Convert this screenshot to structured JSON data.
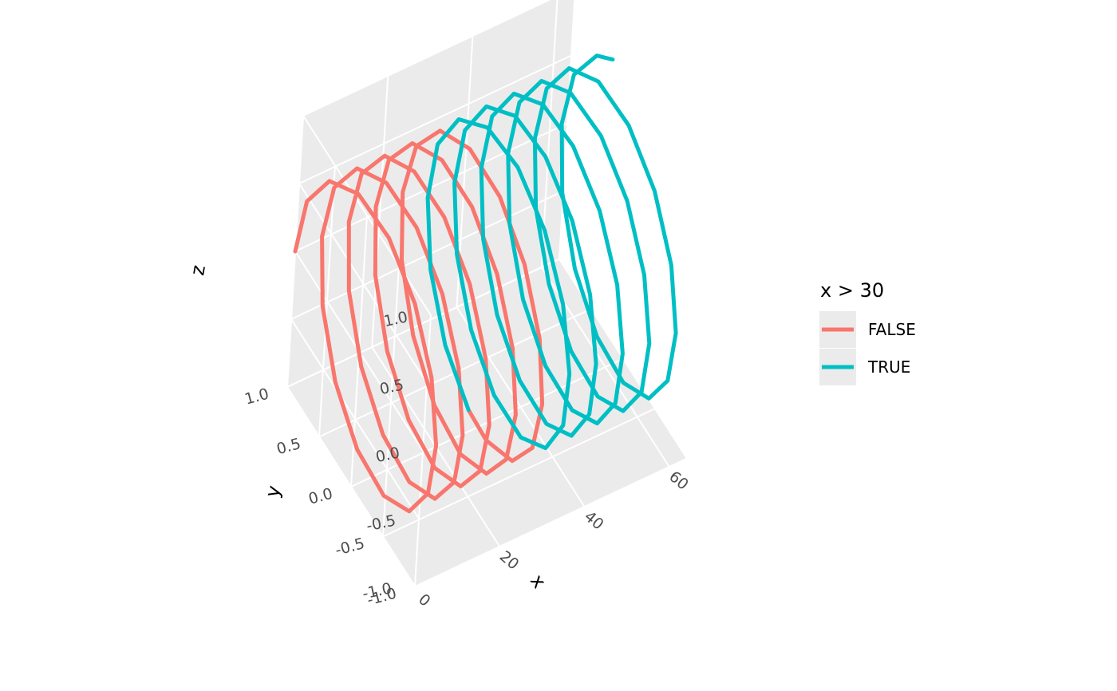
{
  "chart_data": {
    "type": "line",
    "projection": "3d",
    "description_of_data": "helix: y = cos(x), z = sin(x)",
    "x": [
      0.0,
      64.0
    ],
    "axes": {
      "x": {
        "label": "x",
        "ticks": [
          "0",
          "20",
          "40",
          "60"
        ],
        "range": [
          0,
          64
        ]
      },
      "y": {
        "label": "y",
        "ticks": [
          "-1.0",
          "-0.5",
          "0.0",
          "0.5",
          "1.0"
        ],
        "range": [
          -1,
          1
        ]
      },
      "z": {
        "label": "z",
        "ticks": [
          "-1.0",
          "-0.5",
          "0.0",
          "0.5",
          "1.0"
        ],
        "range": [
          -1,
          1
        ]
      }
    },
    "grid": true,
    "legend": {
      "title": "x > 30",
      "placement": "right",
      "items": [
        {
          "label": "FALSE",
          "color": "#F8766D"
        },
        {
          "label": "TRUE",
          "color": "#00BFC4"
        }
      ]
    },
    "series": [
      {
        "name": "FALSE",
        "color": "#F8766D",
        "x_range": [
          0,
          30
        ]
      },
      {
        "name": "TRUE",
        "color": "#00BFC4",
        "x_range": [
          30,
          64
        ]
      }
    ]
  },
  "colors": {
    "panel": "#EBEBEB",
    "grid": "#FFFFFF",
    "tick_text": "#4D4D4D"
  }
}
